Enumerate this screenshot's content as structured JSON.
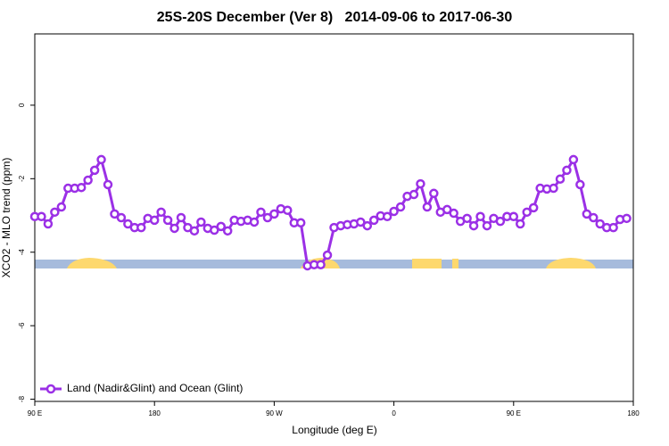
{
  "chart_data": {
    "type": "line",
    "title": "25S-20S December (Ver 8)   2014-09-06 to 2017-06-30",
    "x_label": "Longitude (deg E)",
    "y_label": "XCO2 - MLO trend (ppm)",
    "xlim": [
      90,
      540
    ],
    "ylim": [
      -8.06,
      1.94
    ],
    "xticks": [
      {
        "value": 90,
        "label": "90 E"
      },
      180,
      {
        "value": 270,
        "label": "90 W"
      },
      {
        "value": 360,
        "label": "0"
      },
      {
        "value": 450,
        "label": "90 E"
      },
      {
        "value": 540,
        "label": "180"
      }
    ],
    "yticks": [
      0,
      -2,
      -4,
      -6,
      -8
    ],
    "legend": "bottom-left",
    "x": [
      90,
      95,
      100,
      105,
      110,
      115,
      120,
      125,
      130,
      135,
      140,
      145,
      150,
      155,
      160,
      165,
      170,
      175,
      180,
      185,
      190,
      195,
      200,
      205,
      210,
      215,
      220,
      225,
      230,
      235,
      240,
      245,
      250,
      255,
      260,
      265,
      270,
      275,
      280,
      285,
      290,
      295,
      300,
      305,
      310,
      315,
      320,
      325,
      330,
      335,
      340,
      345,
      350,
      355,
      360,
      365,
      370,
      375,
      380,
      385,
      390,
      395,
      400,
      405,
      410,
      415,
      420,
      425,
      430,
      435,
      440,
      445,
      450,
      455,
      460,
      465,
      470,
      475,
      480,
      485,
      490,
      495,
      500,
      505,
      510,
      515,
      520,
      525,
      530,
      535
    ],
    "series": [
      {
        "name": "Land (Nadir&Glint) and Ocean (Glint)",
        "color": "#9b30e6",
        "values": [
          -3.03,
          -3.03,
          -3.23,
          -2.91,
          -2.77,
          -2.26,
          -2.26,
          -2.24,
          -2.04,
          -1.77,
          -1.48,
          -2.16,
          -2.96,
          -3.06,
          -3.23,
          -3.33,
          -3.33,
          -3.08,
          -3.13,
          -2.91,
          -3.13,
          -3.35,
          -3.06,
          -3.33,
          -3.42,
          -3.18,
          -3.35,
          -3.4,
          -3.3,
          -3.42,
          -3.13,
          -3.16,
          -3.13,
          -3.18,
          -2.91,
          -3.06,
          -2.96,
          -2.82,
          -2.86,
          -3.2,
          -3.2,
          -4.37,
          -4.34,
          -4.34,
          -4.08,
          -3.33,
          -3.28,
          -3.25,
          -3.23,
          -3.18,
          -3.28,
          -3.13,
          -3.01,
          -3.03,
          -2.89,
          -2.77,
          -2.48,
          -2.43,
          -2.14,
          -2.77,
          -2.4,
          -2.91,
          -2.84,
          -2.94,
          -3.16,
          -3.08,
          -3.28,
          -3.03,
          -3.28,
          -3.08,
          -3.16,
          -3.03,
          -3.03,
          -3.23,
          -2.91,
          -2.79,
          -2.26,
          -2.28,
          -2.26,
          -2.01,
          -1.77,
          -1.48,
          -2.16,
          -2.96,
          -3.06,
          -3.23,
          -3.33,
          -3.33,
          -3.11,
          -3.08
        ]
      }
    ]
  }
}
